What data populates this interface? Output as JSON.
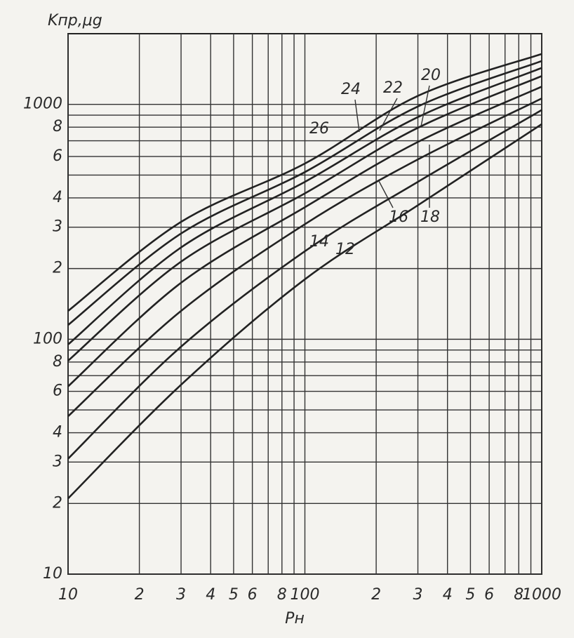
{
  "chart_data": {
    "type": "line",
    "y_label": "Kпр,μg",
    "x_label": "Pн",
    "log_x": true,
    "log_y": true,
    "grid": true,
    "xlim": [
      10,
      1000
    ],
    "ylim": [
      10,
      2000
    ],
    "xticks": [
      10,
      {
        "value": 20,
        "label": "2"
      },
      {
        "value": 30,
        "label": "3"
      },
      {
        "value": 40,
        "label": "4"
      },
      {
        "value": 50,
        "label": "5"
      },
      {
        "value": 60,
        "label": "6"
      },
      {
        "value": 80,
        "label": "8"
      },
      100,
      {
        "value": 200,
        "label": "2"
      },
      {
        "value": 300,
        "label": "3"
      },
      {
        "value": 400,
        "label": "4"
      },
      {
        "value": 500,
        "label": "5"
      },
      {
        "value": 600,
        "label": "6"
      },
      {
        "value": 800,
        "label": "8"
      },
      1000
    ],
    "x_minor_ticks": [
      70,
      90,
      700,
      900
    ],
    "yticks": [
      10,
      {
        "value": 20,
        "label": "2"
      },
      {
        "value": 30,
        "label": "3"
      },
      {
        "value": 40,
        "label": "4"
      },
      {
        "value": 60,
        "label": "6"
      },
      {
        "value": 80,
        "label": "8"
      },
      100,
      {
        "value": 200,
        "label": "2"
      },
      {
        "value": 300,
        "label": "3"
      },
      {
        "value": 400,
        "label": "4"
      },
      {
        "value": 600,
        "label": "6"
      },
      {
        "value": 800,
        "label": "8"
      },
      1000
    ],
    "y_minor_ticks": [
      50,
      70,
      90,
      500,
      700,
      900
    ],
    "x": [
      10,
      30,
      100,
      300,
      1000
    ],
    "series": [
      {
        "name": "26",
        "color": "#222222",
        "values": [
          132,
          316,
          560,
          1087,
          1640
        ]
      },
      {
        "name": "24",
        "color": "#222222",
        "values": [
          115,
          282,
          515,
          980,
          1530
        ]
      },
      {
        "name": "22",
        "color": "#222222",
        "values": [
          95,
          246,
          468,
          883,
          1430
        ]
      },
      {
        "name": "20",
        "color": "#222222",
        "values": [
          81,
          214,
          418,
          795,
          1320
        ]
      },
      {
        "name": "18",
        "color": "#222222",
        "values": [
          63,
          174,
          365,
          692,
          1190
        ]
      },
      {
        "name": "16",
        "color": "#222222",
        "values": [
          47,
          132,
          309,
          583,
          1060
        ]
      },
      {
        "name": "14",
        "color": "#222222",
        "values": [
          31,
          93,
          237,
          468,
          946
        ]
      },
      {
        "name": "12",
        "color": "#222222",
        "values": [
          21,
          64,
          180,
          372,
          824
        ]
      }
    ]
  }
}
